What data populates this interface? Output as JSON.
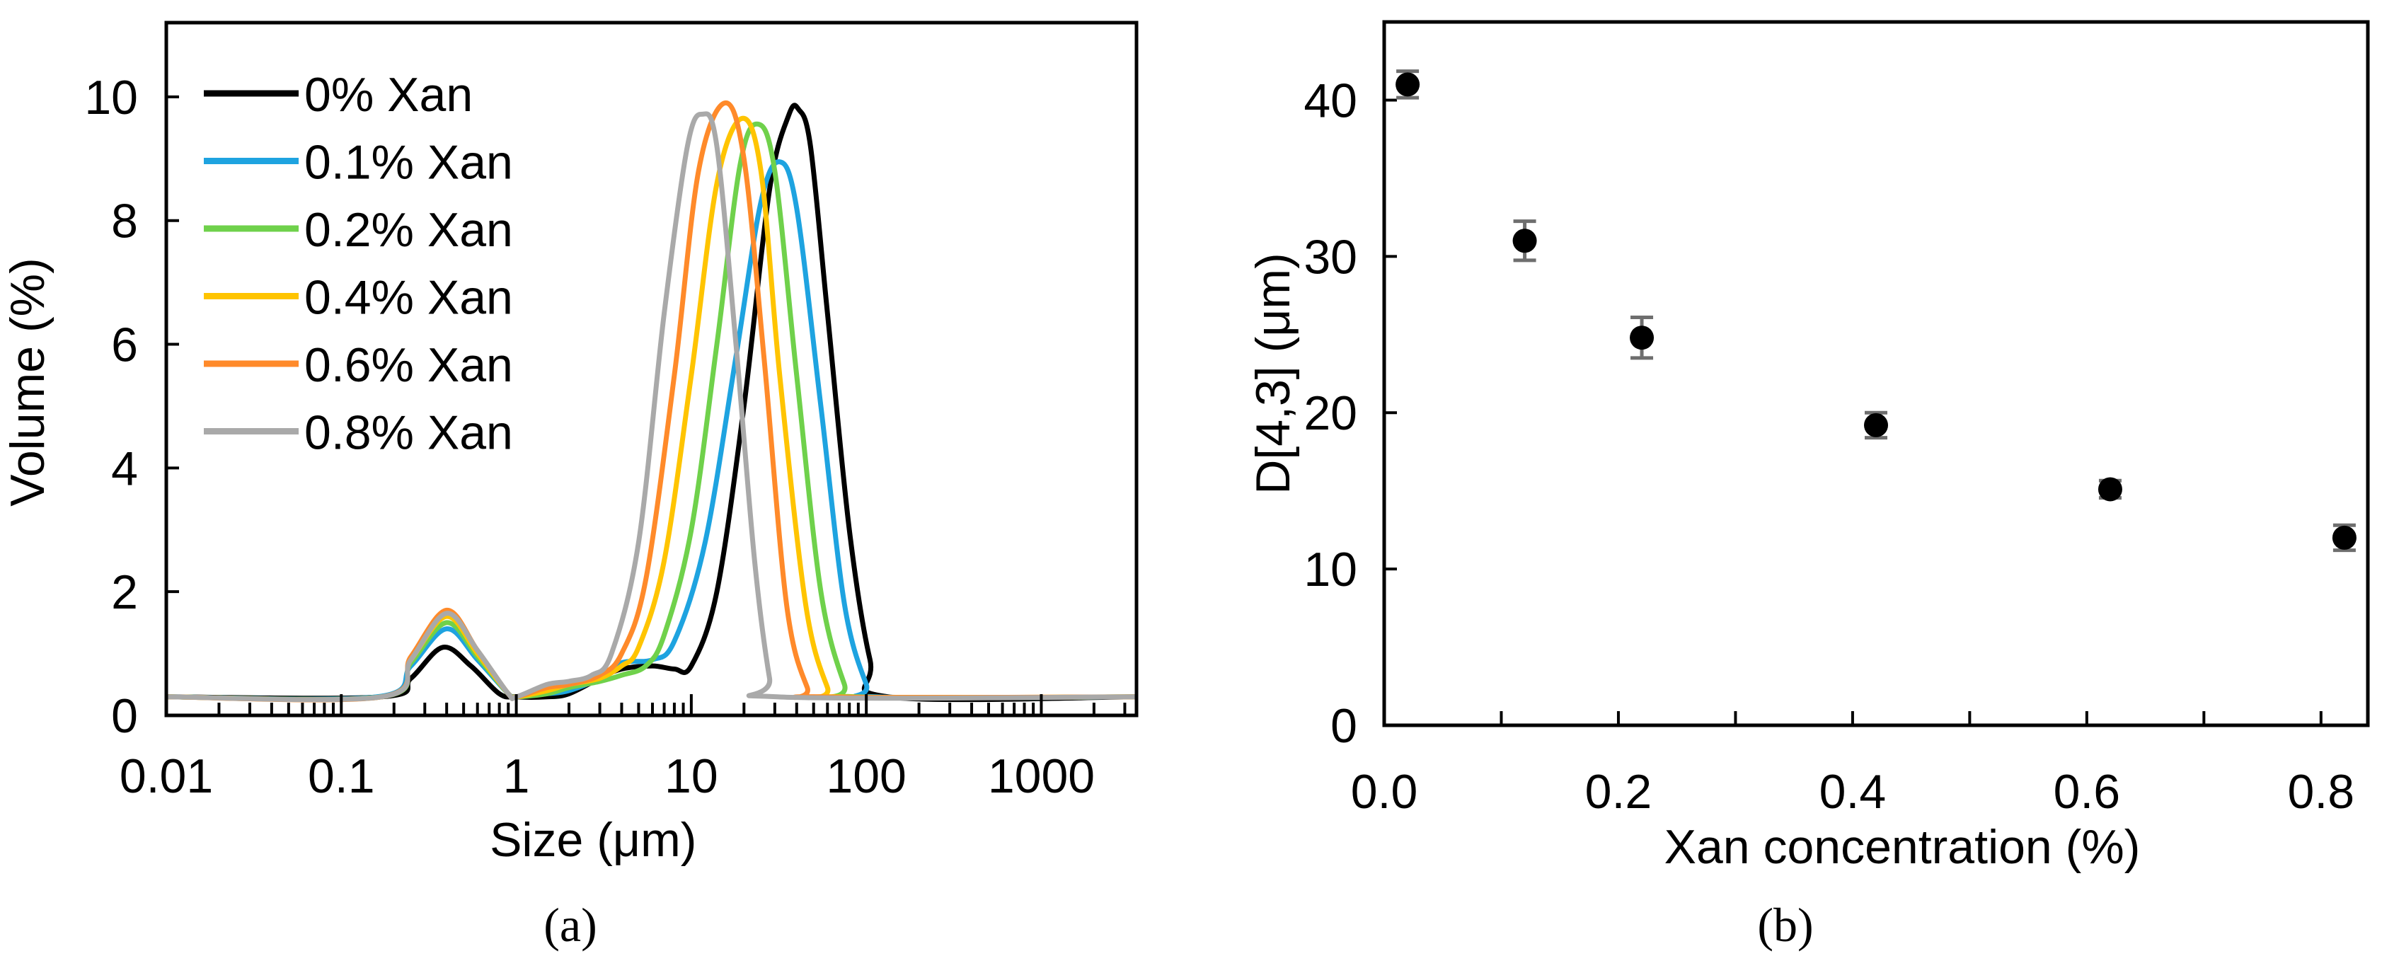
{
  "chart_data": [
    {
      "type": "line",
      "panel_label": "(a)",
      "xlabel": "Size (μm)",
      "ylabel": "Volume (%)",
      "x_scale": "log",
      "xlim": [
        0.01,
        3500
      ],
      "ylim": [
        0,
        11.2
      ],
      "x_ticks": [
        0.01,
        0.1,
        1,
        10,
        100,
        1000
      ],
      "x_tick_labels": [
        "0.01",
        "0.1",
        "1",
        "10",
        "100",
        "1000"
      ],
      "y_ticks": [
        0,
        2,
        4,
        6,
        8,
        10
      ],
      "y_tick_labels": [
        "0",
        "2",
        "4",
        "6",
        "8",
        "10"
      ],
      "grid": false,
      "legend_position": "top-left",
      "series": [
        {
          "name": "0% Xan",
          "color": "#000000",
          "points": [
            [
              0.01,
              0.3
            ],
            [
              0.17,
              0.3
            ],
            [
              0.25,
              0.6
            ],
            [
              0.38,
              1.1
            ],
            [
              0.55,
              0.8
            ],
            [
              0.8,
              0.35
            ],
            [
              1,
              0.3
            ],
            [
              1.5,
              0.3
            ],
            [
              2,
              0.35
            ],
            [
              3,
              0.6
            ],
            [
              4,
              0.75
            ],
            [
              6,
              0.8
            ],
            [
              8,
              0.75
            ],
            [
              10,
              0.8
            ],
            [
              14,
              2.0
            ],
            [
              20,
              5.0
            ],
            [
              28,
              8.5
            ],
            [
              36,
              9.7
            ],
            [
              41,
              9.8
            ],
            [
              48,
              9.2
            ],
            [
              60,
              6.5
            ],
            [
              80,
              3.0
            ],
            [
              105,
              0.9
            ],
            [
              133,
              0.3
            ],
            [
              3500,
              0.3
            ]
          ]
        },
        {
          "name": "0.1% Xan",
          "color": "#1ea3e0",
          "points": [
            [
              0.01,
              0.3
            ],
            [
              0.16,
              0.3
            ],
            [
              0.25,
              0.8
            ],
            [
              0.4,
              1.4
            ],
            [
              0.6,
              0.9
            ],
            [
              0.9,
              0.35
            ],
            [
              1,
              0.3
            ],
            [
              1.5,
              0.35
            ],
            [
              2,
              0.4
            ],
            [
              3,
              0.6
            ],
            [
              4,
              0.85
            ],
            [
              6,
              0.9
            ],
            [
              8,
              1.2
            ],
            [
              12,
              2.8
            ],
            [
              18,
              5.8
            ],
            [
              25,
              8.3
            ],
            [
              32,
              8.95
            ],
            [
              40,
              8.2
            ],
            [
              55,
              5.0
            ],
            [
              75,
              1.8
            ],
            [
              100,
              0.5
            ],
            [
              115,
              0.3
            ],
            [
              3500,
              0.3
            ]
          ]
        },
        {
          "name": "0.2% Xan",
          "color": "#6fd14b",
          "points": [
            [
              0.01,
              0.3
            ],
            [
              0.17,
              0.3
            ],
            [
              0.25,
              0.85
            ],
            [
              0.4,
              1.5
            ],
            [
              0.6,
              0.95
            ],
            [
              0.9,
              0.35
            ],
            [
              1,
              0.3
            ],
            [
              1.5,
              0.35
            ],
            [
              2,
              0.45
            ],
            [
              3,
              0.55
            ],
            [
              4,
              0.65
            ],
            [
              5.5,
              0.8
            ],
            [
              7,
              1.3
            ],
            [
              10,
              3.0
            ],
            [
              14,
              6.0
            ],
            [
              19,
              8.9
            ],
            [
              24,
              9.56
            ],
            [
              30,
              8.8
            ],
            [
              40,
              5.5
            ],
            [
              55,
              2.0
            ],
            [
              75,
              0.5
            ],
            [
              88,
              0.3
            ],
            [
              3500,
              0.3
            ]
          ]
        },
        {
          "name": "0.4% Xan",
          "color": "#ffc400",
          "points": [
            [
              0.01,
              0.3
            ],
            [
              0.17,
              0.3
            ],
            [
              0.25,
              0.9
            ],
            [
              0.4,
              1.6
            ],
            [
              0.6,
              1.0
            ],
            [
              0.9,
              0.35
            ],
            [
              1,
              0.3
            ],
            [
              1.5,
              0.4
            ],
            [
              2,
              0.5
            ],
            [
              3,
              0.6
            ],
            [
              4,
              0.8
            ],
            [
              5,
              1.1
            ],
            [
              7,
              2.5
            ],
            [
              10,
              5.5
            ],
            [
              14,
              8.6
            ],
            [
              19.4,
              9.65
            ],
            [
              25,
              8.8
            ],
            [
              32,
              5.5
            ],
            [
              45,
              1.8
            ],
            [
              60,
              0.45
            ],
            [
              70,
              0.3
            ],
            [
              3500,
              0.3
            ]
          ]
        },
        {
          "name": "0.6% Xan",
          "color": "#ff8a2a",
          "points": [
            [
              0.01,
              0.3
            ],
            [
              0.17,
              0.3
            ],
            [
              0.25,
              0.95
            ],
            [
              0.4,
              1.7
            ],
            [
              0.6,
              1.05
            ],
            [
              0.9,
              0.35
            ],
            [
              1,
              0.3
            ],
            [
              1.5,
              0.45
            ],
            [
              2,
              0.5
            ],
            [
              3,
              0.65
            ],
            [
              4,
              1.0
            ],
            [
              5.5,
              2.2
            ],
            [
              8,
              5.5
            ],
            [
              11,
              8.8
            ],
            [
              15.5,
              9.9
            ],
            [
              20,
              9.0
            ],
            [
              26,
              5.8
            ],
            [
              35,
              1.8
            ],
            [
              46,
              0.45
            ],
            [
              55,
              0.3
            ],
            [
              3500,
              0.3
            ]
          ]
        },
        {
          "name": "0.8% Xan",
          "color": "#a9a9a9",
          "points": [
            [
              0.01,
              0.3
            ],
            [
              0.17,
              0.3
            ],
            [
              0.25,
              0.9
            ],
            [
              0.4,
              1.65
            ],
            [
              0.6,
              1.05
            ],
            [
              0.9,
              0.35
            ],
            [
              1,
              0.3
            ],
            [
              1.5,
              0.5
            ],
            [
              2,
              0.55
            ],
            [
              2.7,
              0.65
            ],
            [
              3.5,
              1.0
            ],
            [
              5,
              2.8
            ],
            [
              7,
              6.5
            ],
            [
              9.5,
              9.2
            ],
            [
              11.6,
              9.72
            ],
            [
              14,
              9.2
            ],
            [
              18,
              6.0
            ],
            [
              23,
              2.5
            ],
            [
              28,
              0.6
            ],
            [
              31,
              0.3
            ],
            [
              3500,
              0.3
            ]
          ]
        }
      ]
    },
    {
      "type": "scatter",
      "panel_label": "(b)",
      "xlabel": "Xan concentration (%)",
      "ylabel": "D[4,3] (μm)",
      "xlim": [
        0,
        0.84
      ],
      "ylim": [
        0,
        45
      ],
      "x_ticks": [
        0,
        0.1,
        0.2,
        0.3,
        0.4,
        0.5,
        0.6,
        0.7,
        0.8
      ],
      "x_tick_labels": [
        "0.0",
        "",
        "0.2",
        "",
        "0.4",
        "",
        "0.6",
        "",
        "0.8"
      ],
      "y_ticks": [
        0,
        10,
        20,
        30,
        40
      ],
      "y_tick_labels": [
        "0",
        "10",
        "20",
        "30",
        "40"
      ],
      "grid": false,
      "marker_color": "#000000",
      "error_bar_color": "#6e6e6e",
      "x": [
        0.02,
        0.12,
        0.22,
        0.42,
        0.62,
        0.82
      ],
      "y": [
        41.0,
        31.0,
        24.8,
        19.2,
        15.1,
        12.0
      ],
      "error": [
        0.85,
        1.25,
        1.3,
        0.8,
        0.55,
        0.8
      ]
    }
  ]
}
